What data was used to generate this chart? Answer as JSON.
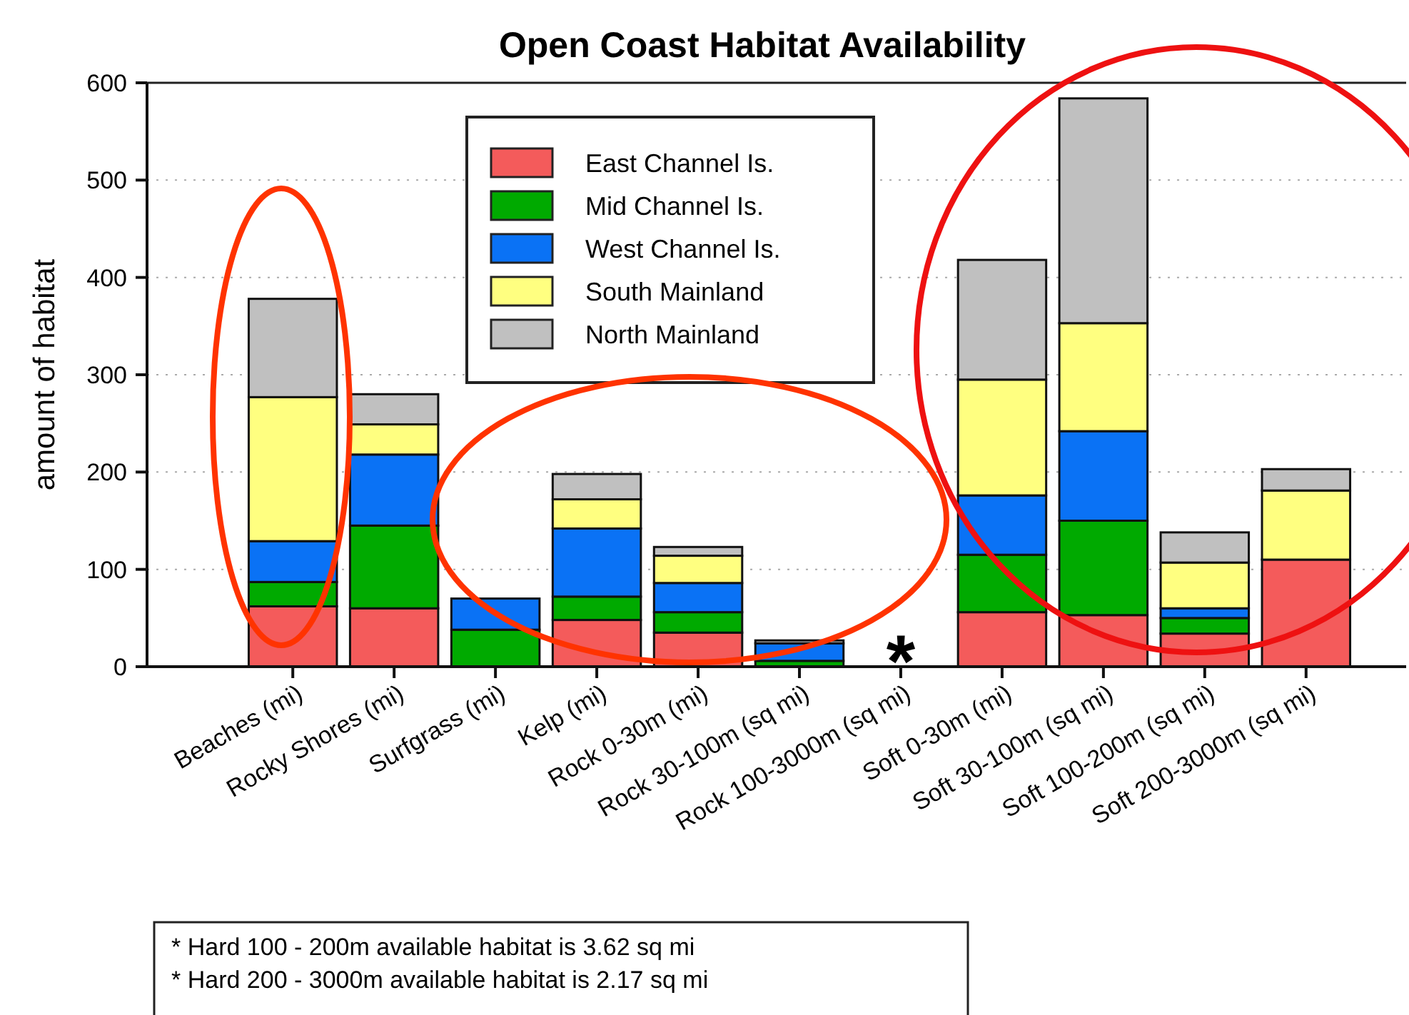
{
  "chart_data": {
    "type": "bar",
    "title": "Open Coast Habitat Availability",
    "ylabel": "amount of habitat",
    "categories": [
      "Beaches (mi)",
      "Rocky Shores (mi)",
      "Surfgrass (mi)",
      "Kelp (mi)",
      "Rock 0-30m (mi)",
      "Rock 30-100m (sq mi)",
      "Rock 100-3000m (sq mi)",
      "Soft 0-30m (mi)",
      "Soft 30-100m (sq mi)",
      "Soft 100-200m (sq mi)",
      "Soft 200-3000m (sq mi)"
    ],
    "stacked": true,
    "series": [
      {
        "name": "East Channel Is.",
        "color": "#f45b5b",
        "values": [
          62,
          60,
          0,
          48,
          35,
          null,
          null,
          56,
          53,
          34,
          110
        ]
      },
      {
        "name": "Mid Channel Is.",
        "color": "#00aa00",
        "values": [
          25,
          85,
          38,
          24,
          21,
          6,
          null,
          59,
          97,
          16,
          0
        ]
      },
      {
        "name": "West Channel Is.",
        "color": "#0a72f5",
        "values": [
          42,
          73,
          32,
          70,
          30,
          18,
          null,
          61,
          92,
          10,
          0
        ]
      },
      {
        "name": "South Mainland",
        "color": "#ffff80",
        "values": [
          148,
          31,
          0,
          30,
          28,
          0,
          null,
          119,
          111,
          47,
          71
        ]
      },
      {
        "name": "North Mainland",
        "color": "#c0c0c0",
        "values": [
          101,
          31,
          0,
          26,
          9,
          3,
          null,
          123,
          231,
          31,
          22
        ]
      }
    ],
    "ylim": [
      0,
      600
    ],
    "yticks": [
      0,
      100,
      200,
      300,
      400,
      500,
      600
    ],
    "grid": "y",
    "legend": "top",
    "annotations": [
      "*",
      "* Hard 100 - 200m available habitat is 3.62 sq mi",
      "* Hard 200 - 3000m available habitat is 2.17 sq mi"
    ]
  }
}
